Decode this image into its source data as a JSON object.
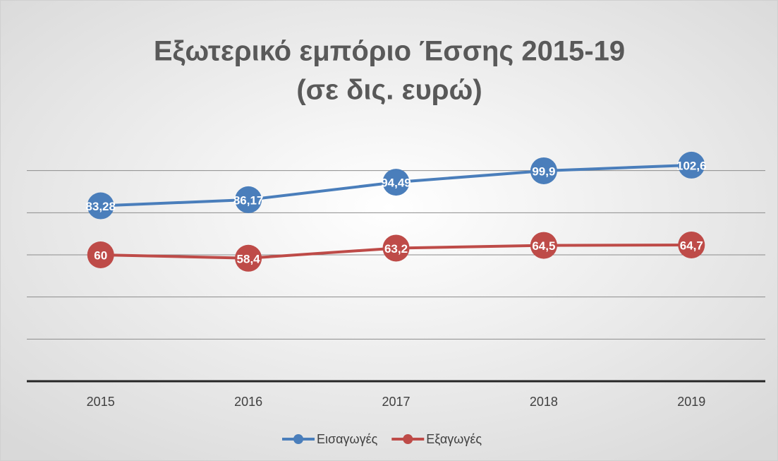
{
  "chart_data": {
    "type": "line",
    "title": [
      "Εξωτερικό εμπόριο Έσσης 2015-19",
      "(σε δις. ευρώ)"
    ],
    "categories": [
      "2015",
      "2016",
      "2017",
      "2018",
      "2019"
    ],
    "series": [
      {
        "name": "Εισαγωγές",
        "color": "#4a7ebb",
        "values": [
          83.28,
          86.17,
          94.49,
          99.9,
          102.6
        ],
        "value_labels": [
          "83,28",
          "86,17",
          "94,49",
          "99,9",
          "102,6"
        ]
      },
      {
        "name": "Εξαγωγές",
        "color": "#be4b48",
        "values": [
          60,
          58.4,
          63.2,
          64.5,
          64.7
        ],
        "value_labels": [
          "60",
          "58,4",
          "63,2",
          "64,5",
          "64,7"
        ]
      }
    ],
    "ylim": [
      0,
      120
    ],
    "yticks": [
      0,
      20,
      40,
      60,
      80,
      100
    ],
    "grid": true,
    "legend": "bottom"
  }
}
